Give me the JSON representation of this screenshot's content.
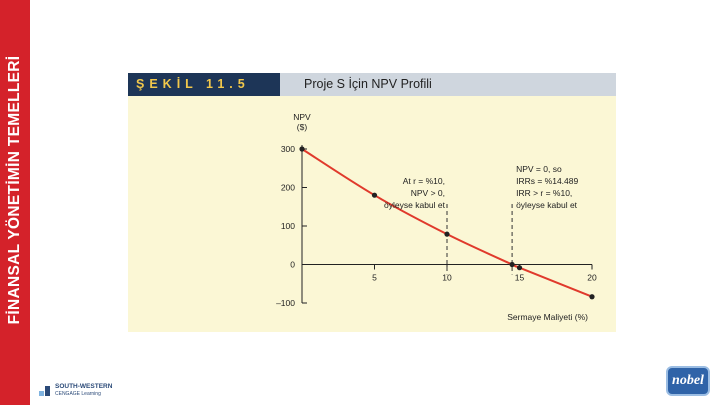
{
  "sidebar": {
    "title": "FİNANSAL YÖNETİMİN TEMELLERİ"
  },
  "figure": {
    "label": "ŞEKİL 11.5",
    "title": "Proje S İçin NPV Profili"
  },
  "chart_data": {
    "type": "line",
    "title": "Proje S İçin NPV Profili",
    "ylabel_lines": [
      "NPV",
      "($)"
    ],
    "xlabel": "Sermaye Maliyeti (%)",
    "xlim": [
      0,
      20
    ],
    "ylim": [
      -100,
      300
    ],
    "xticks": [
      5,
      10,
      15,
      20
    ],
    "yticks": [
      300,
      200,
      100,
      0,
      -100
    ],
    "ytick_labels": [
      "300",
      "200",
      "100",
      "0",
      "–100"
    ],
    "grid": false,
    "line_color": "#e03a2c",
    "series": [
      {
        "name": "",
        "x": [
          0,
          5,
          10,
          14.489,
          15,
          20
        ],
        "y": [
          300,
          180,
          78.82,
          0,
          -8.33,
          -83.72
        ]
      }
    ],
    "annotations": [
      {
        "at_x": 10,
        "lines": [
          "At r = %10,",
          "NPV > 0,",
          "öyleyse kabul et"
        ]
      },
      {
        "at_x": 14.489,
        "lines": [
          "NPV = 0, so",
          "IRRs = %14.489",
          "IRR > r = %10,",
          "öyleyse kabul et"
        ]
      }
    ]
  },
  "footer": {
    "publisher_name": "SOUTH-WESTERN",
    "publisher_sub": "CENGAGE Learning",
    "nobel": "nobel"
  }
}
